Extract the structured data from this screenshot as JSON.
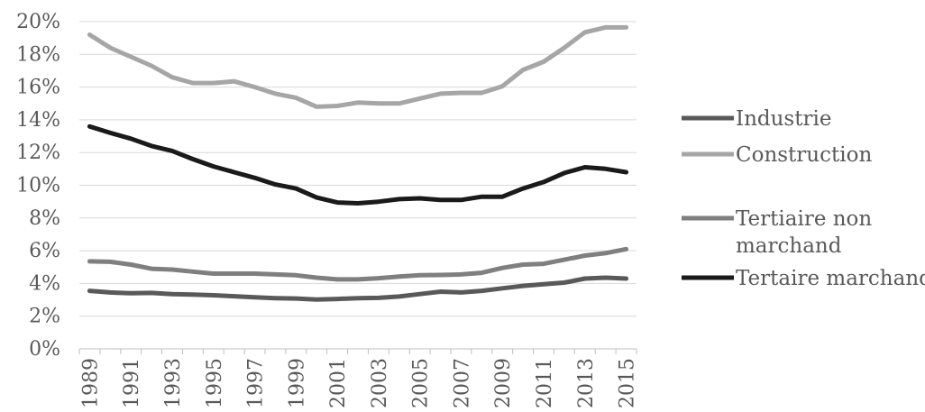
{
  "chart_data": {
    "type": "line",
    "title": "",
    "xlabel": "",
    "ylabel": "",
    "x": [
      1989,
      1990,
      1991,
      1992,
      1993,
      1994,
      1995,
      1996,
      1997,
      1998,
      1999,
      2000,
      2001,
      2002,
      2003,
      2004,
      2005,
      2006,
      2007,
      2008,
      2009,
      2010,
      2011,
      2012,
      2013,
      2014,
      2015
    ],
    "x_tick_labels": [
      "1989",
      "1991",
      "1993",
      "1995",
      "1997",
      "1999",
      "2001",
      "2003",
      "2005",
      "2007",
      "2009",
      "2011",
      "2013",
      "2015"
    ],
    "ylim": [
      0,
      20
    ],
    "y_ticks": [
      0,
      2,
      4,
      6,
      8,
      10,
      12,
      14,
      16,
      18,
      20
    ],
    "y_tick_labels": [
      "0%",
      "2%",
      "4%",
      "6%",
      "8%",
      "10%",
      "12%",
      "14%",
      "16%",
      "18%",
      "20%"
    ],
    "grid": true,
    "legend_position": "right",
    "series": [
      {
        "name": "Industrie",
        "color": "#595959",
        "values": [
          3.55,
          3.45,
          3.4,
          3.42,
          3.35,
          3.32,
          3.28,
          3.22,
          3.15,
          3.1,
          3.08,
          3.02,
          3.05,
          3.1,
          3.12,
          3.2,
          3.35,
          3.5,
          3.45,
          3.55,
          3.7,
          3.85,
          3.95,
          4.05,
          4.3,
          4.35,
          4.3
        ]
      },
      {
        "name": "Construction",
        "color": "#a6a6a6",
        "values": [
          19.2,
          18.4,
          17.85,
          17.3,
          16.6,
          16.25,
          16.25,
          16.35,
          16.0,
          15.6,
          15.35,
          14.8,
          14.85,
          15.05,
          15.0,
          15.0,
          15.3,
          15.6,
          15.65,
          15.65,
          16.05,
          17.05,
          17.55,
          18.4,
          19.35,
          19.65,
          19.65
        ]
      },
      {
        "name": "Tertiaire non marchand",
        "name_lines": [
          "Tertiaire non",
          "marchand"
        ],
        "color": "#7f7f7f",
        "values": [
          5.35,
          5.32,
          5.15,
          4.9,
          4.85,
          4.72,
          4.6,
          4.6,
          4.6,
          4.55,
          4.5,
          4.35,
          4.25,
          4.25,
          4.32,
          4.42,
          4.5,
          4.52,
          4.55,
          4.65,
          4.95,
          5.15,
          5.2,
          5.45,
          5.7,
          5.85,
          6.1
        ]
      },
      {
        "name": "Tertaire marchand",
        "color": "#1a1a1a",
        "values": [
          13.6,
          13.2,
          12.85,
          12.4,
          12.1,
          11.6,
          11.15,
          10.8,
          10.45,
          10.05,
          9.8,
          9.25,
          8.95,
          8.9,
          9.0,
          9.15,
          9.2,
          9.1,
          9.1,
          9.3,
          9.3,
          9.8,
          10.2,
          10.75,
          11.1,
          11.0,
          10.8
        ]
      }
    ]
  }
}
